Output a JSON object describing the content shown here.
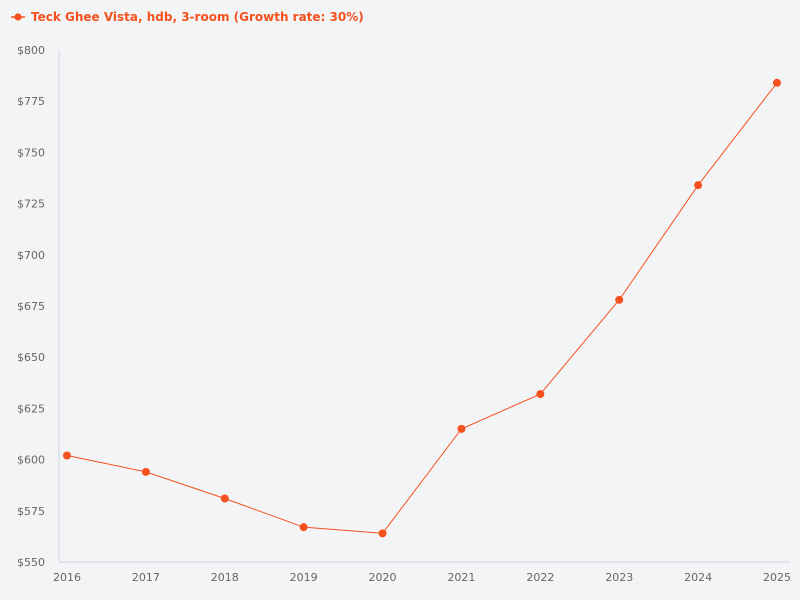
{
  "chart_data": {
    "type": "line",
    "x": [
      2016,
      2017,
      2018,
      2019,
      2020,
      2021,
      2022,
      2023,
      2024,
      2025
    ],
    "x_labels": [
      "2016",
      "2017",
      "2018",
      "2019",
      "2020",
      "2021",
      "2022",
      "2023",
      "2024",
      "2025"
    ],
    "series": [
      {
        "name": "Teck Ghee Vista, hdb, 3-room (Growth rate: 30%)",
        "color": "#f4511e",
        "values": [
          602,
          594,
          581,
          567,
          564,
          615,
          632,
          678,
          734,
          784
        ]
      }
    ],
    "ylim": [
      550,
      800
    ],
    "y_ticks": [
      550,
      575,
      600,
      625,
      650,
      675,
      700,
      725,
      750,
      775,
      800
    ],
    "y_tick_labels": [
      "$550",
      "$575",
      "$600",
      "$625",
      "$650",
      "$675",
      "$700",
      "$725",
      "$750",
      "$775",
      "$800"
    ],
    "legend_position": "top-left",
    "grid": false,
    "title": "",
    "xlabel": "",
    "ylabel": ""
  }
}
